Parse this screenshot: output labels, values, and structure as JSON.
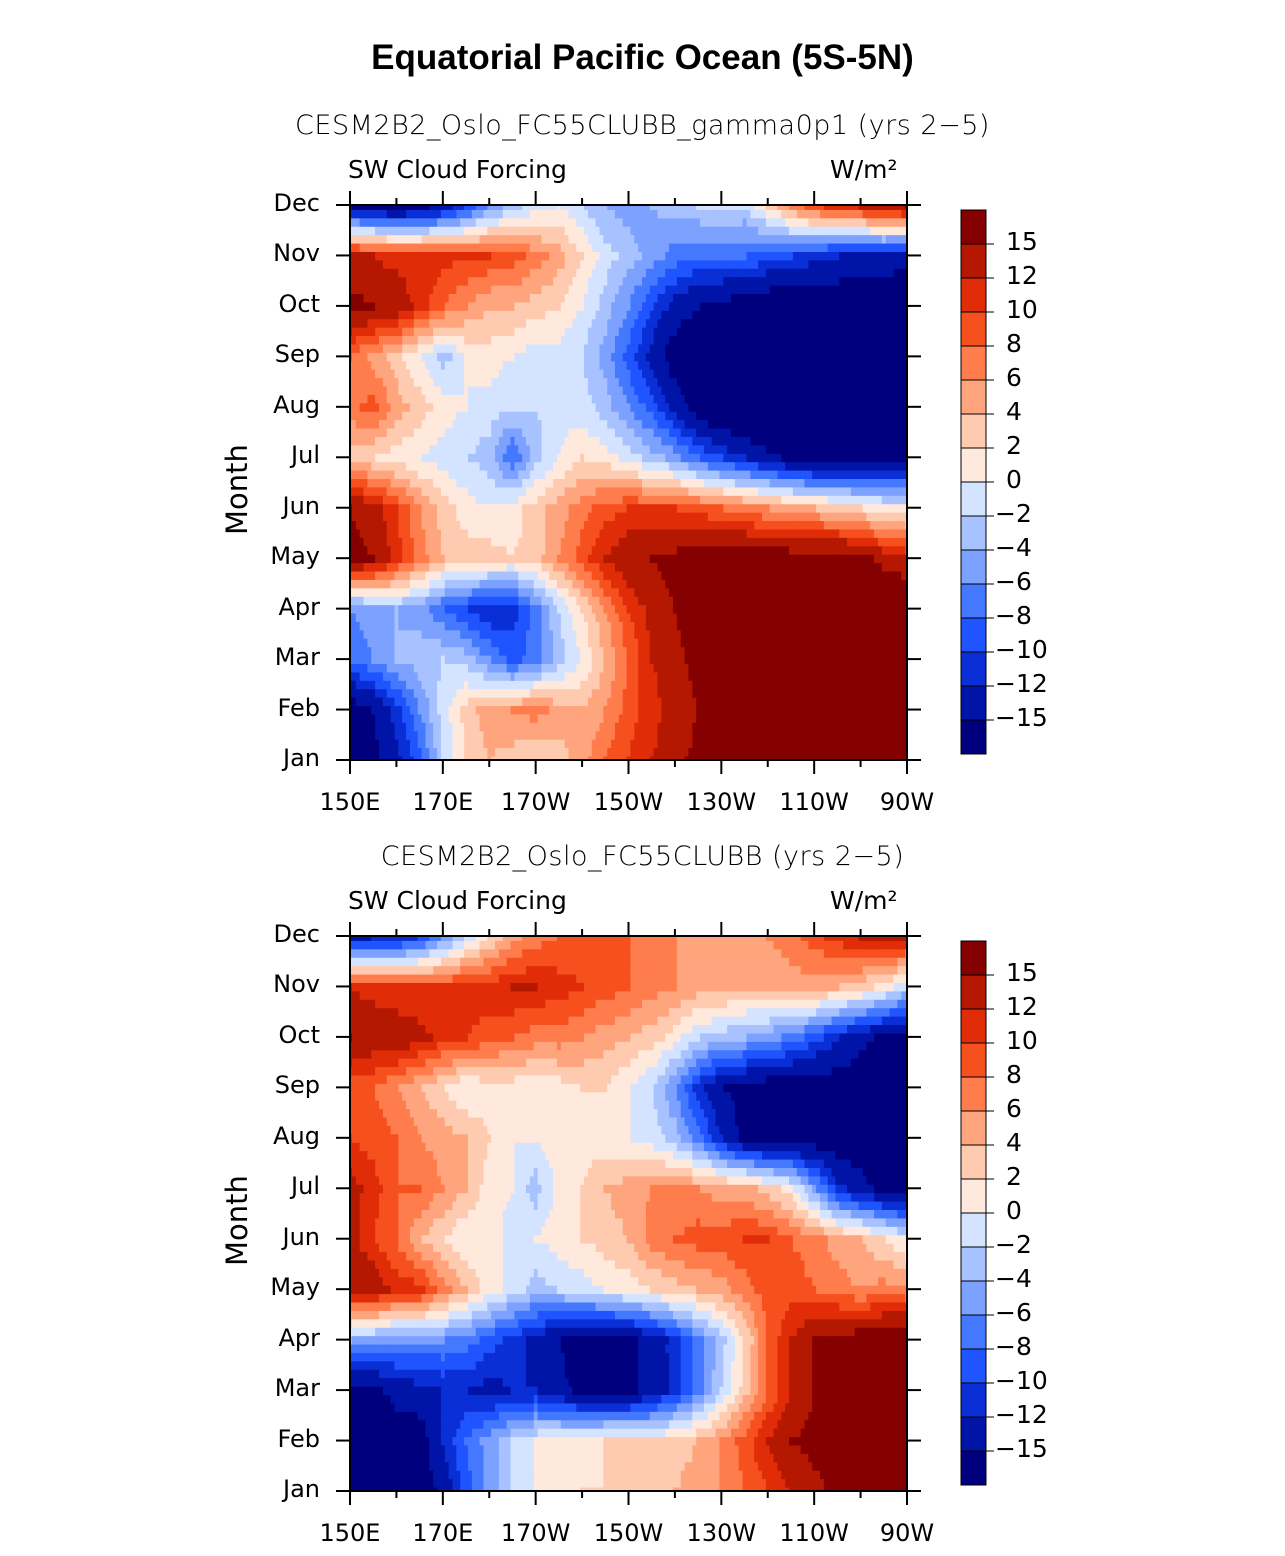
{
  "title": "Equatorial Pacific Ocean (5S-5N)",
  "colors": [
    "#00007f",
    "#0014a8",
    "#0a2fd6",
    "#1f54ff",
    "#4478ff",
    "#7ca1ff",
    "#a8c1ff",
    "#d4e3ff",
    "#ffe9dc",
    "#ffcbb0",
    "#ffa57e",
    "#ff7c4c",
    "#f5501e",
    "#e02d08",
    "#b51800",
    "#850000"
  ],
  "chart_data": [
    {
      "type": "heatmap",
      "title": "CESM2B2_Oslo_FC55CLUBB_gamma0p1 (yrs 2−5)",
      "left_string": "SW Cloud Forcing",
      "right_string": "W/m²",
      "ylabel": "Month",
      "x_ticks": [
        "150E",
        "170E",
        "170W",
        "150W",
        "130W",
        "110W",
        "90W"
      ],
      "y_ticks": [
        "Jan",
        "Feb",
        "Mar",
        "Apr",
        "May",
        "Jun",
        "Jul",
        "Aug",
        "Sep",
        "Oct",
        "Nov",
        "Dec"
      ],
      "x_lon": [
        150,
        155,
        160,
        165,
        170,
        175,
        180,
        185,
        190,
        195,
        200,
        205,
        210,
        215,
        220,
        225,
        230,
        235,
        240,
        245,
        250,
        255,
        260,
        265,
        270
      ],
      "colorbar_labels": [
        "15",
        "12",
        "10",
        "8",
        "6",
        "4",
        "2",
        "0",
        "−2",
        "−4",
        "−6",
        "−8",
        "−10",
        "−12",
        "−15"
      ],
      "values": [
        [
          -18,
          -16,
          -13,
          -9,
          -2,
          2,
          4,
          3,
          2,
          3,
          5,
          8,
          10,
          12,
          14,
          16,
          17,
          18,
          18,
          18,
          19,
          19,
          20,
          20,
          20
        ],
        [
          -17,
          -15,
          -11,
          -6,
          -1,
          3,
          5,
          6,
          7,
          5,
          4,
          6,
          9,
          11,
          13,
          15,
          16,
          17,
          18,
          18,
          19,
          19,
          20,
          20,
          20
        ],
        [
          -8,
          -6,
          -4,
          -3,
          -2,
          -3,
          -6,
          -9,
          -7,
          -3,
          0,
          4,
          8,
          12,
          14,
          16,
          17,
          18,
          18,
          19,
          19,
          20,
          20,
          20,
          20
        ],
        [
          -6,
          -5,
          -4,
          -5,
          -8,
          -10,
          -12,
          -11,
          -7,
          -2,
          2,
          6,
          10,
          13,
          15,
          17,
          18,
          19,
          19,
          19,
          19,
          20,
          20,
          20,
          20
        ],
        [
          16,
          15,
          11,
          7,
          4,
          3,
          3,
          2,
          3,
          6,
          9,
          12,
          14,
          15,
          16,
          17,
          17,
          17,
          17,
          17,
          17,
          17,
          16,
          14,
          12
        ],
        [
          15,
          13,
          10,
          6,
          3,
          1,
          0,
          1,
          3,
          5,
          7,
          9,
          10,
          10,
          10,
          9,
          8,
          7,
          6,
          5,
          4,
          3,
          2,
          1,
          0
        ],
        [
          3,
          2,
          1,
          0,
          -1,
          -2,
          -3,
          -8,
          -3,
          0,
          2,
          1,
          -1,
          -3,
          -5,
          -8,
          -10,
          -12,
          -14,
          -16,
          -17,
          -17,
          -17,
          -17,
          -16
        ],
        [
          7,
          9,
          5,
          3,
          1,
          0,
          -1,
          -2,
          -2,
          -1,
          -1,
          -3,
          -6,
          -9,
          -13,
          -17,
          -19,
          -20,
          -20,
          -20,
          -20,
          -20,
          -20,
          -20,
          -20
        ],
        [
          8,
          5,
          3,
          0,
          -3,
          0,
          1,
          0,
          -1,
          -1,
          -2,
          -5,
          -9,
          -13,
          -17,
          -19,
          -20,
          -20,
          -20,
          -20,
          -20,
          -20,
          -20,
          -20,
          -20
        ],
        [
          16,
          15,
          14,
          11,
          8,
          6,
          4,
          4,
          3,
          2,
          0,
          -3,
          -6,
          -10,
          -13,
          -15,
          -16,
          -17,
          -18,
          -18,
          -18,
          -18,
          -18,
          -18,
          -18
        ],
        [
          13,
          12,
          11,
          11,
          11,
          10,
          10,
          9,
          7,
          5,
          2,
          -1,
          -3,
          -5,
          -7,
          -8,
          -8,
          -8,
          -9,
          -10,
          -11,
          -12,
          -13,
          -13,
          -14
        ],
        [
          -15,
          -16,
          -17,
          -16,
          -14,
          -10,
          -6,
          -3,
          -1,
          0,
          -2,
          -4,
          -5,
          -4,
          -3,
          -2,
          -1,
          -2,
          2,
          6,
          9,
          11,
          12,
          14,
          15
        ]
      ]
    },
    {
      "type": "heatmap",
      "title": "CESM2B2_Oslo_FC55CLUBB (yrs 2−5)",
      "left_string": "SW Cloud Forcing",
      "right_string": "W/m²",
      "ylabel": "Month",
      "x_ticks": [
        "150E",
        "170E",
        "170W",
        "150W",
        "130W",
        "110W",
        "90W"
      ],
      "y_ticks": [
        "Jan",
        "Feb",
        "Mar",
        "Apr",
        "May",
        "Jun",
        "Jul",
        "Aug",
        "Sep",
        "Oct",
        "Nov",
        "Dec"
      ],
      "x_lon": [
        150,
        155,
        160,
        165,
        170,
        175,
        180,
        185,
        190,
        195,
        200,
        205,
        210,
        215,
        220,
        225,
        230,
        235,
        240,
        245,
        250,
        255,
        260,
        265,
        270
      ],
      "colorbar_labels": [
        "15",
        "12",
        "10",
        "8",
        "6",
        "4",
        "2",
        "0",
        "−2",
        "−4",
        "−6",
        "−8",
        "−10",
        "−12",
        "−15"
      ],
      "values": [
        [
          -17,
          -17,
          -17,
          -17,
          -14,
          -9,
          -5,
          -2,
          0,
          1,
          2,
          2,
          3,
          3,
          4,
          5,
          6,
          8,
          10,
          12,
          14,
          16,
          18,
          19,
          20
        ],
        [
          -17,
          -17,
          -17,
          -17,
          -12,
          -8,
          -5,
          -2,
          0,
          1,
          1,
          2,
          2,
          2,
          3,
          4,
          6,
          9,
          12,
          15,
          16,
          17,
          18,
          19,
          20
        ],
        [
          -17,
          -16,
          -14,
          -13,
          -12,
          -12,
          -13,
          -12,
          -12,
          -14,
          -16,
          -16,
          -16,
          -14,
          -11,
          -7,
          -2,
          3,
          8,
          12,
          15,
          16,
          18,
          18,
          19
        ],
        [
          -4,
          -5,
          -6,
          -6,
          -6,
          -7,
          -9,
          -11,
          -13,
          -15,
          -17,
          -17,
          -16,
          -14,
          -11,
          -7,
          -3,
          2,
          8,
          12,
          15,
          16,
          17,
          17,
          18
        ],
        [
          14,
          14,
          11,
          11,
          7,
          4,
          1,
          -1,
          -3,
          -2,
          -1,
          0,
          1,
          2,
          3,
          4,
          5,
          7,
          9,
          9,
          8,
          7,
          6,
          7,
          6
        ],
        [
          13,
          10,
          8,
          4,
          2,
          0,
          1,
          -1,
          0,
          1,
          2,
          3,
          4,
          7,
          8,
          9,
          9,
          10,
          10,
          8,
          7,
          5,
          4,
          2,
          0
        ],
        [
          13,
          11,
          8,
          8,
          6,
          4,
          1,
          0,
          -3,
          1,
          2,
          4,
          5,
          6,
          6,
          6,
          5,
          5,
          3,
          1,
          -5,
          -11,
          -14,
          -16,
          -17
        ],
        [
          10,
          9,
          8,
          6,
          5,
          4,
          2,
          0,
          0,
          1,
          1,
          1,
          0,
          -1,
          -3,
          -7,
          -12,
          -16,
          -17,
          -17,
          -17,
          -17,
          -17,
          -17,
          -17
        ],
        [
          9,
          8,
          6,
          4,
          2,
          0,
          1,
          1,
          0,
          1,
          2,
          2,
          0,
          -2,
          -6,
          -11,
          -15,
          -16,
          -17,
          -17,
          -17,
          -17,
          -17,
          -17,
          -17
        ],
        [
          15,
          14,
          14,
          13,
          11,
          10,
          9,
          8,
          7,
          7,
          6,
          5,
          4,
          3,
          1,
          -2,
          -3,
          -4,
          -5,
          -7,
          -9,
          -12,
          -14,
          -16,
          -17
        ],
        [
          12,
          11,
          10,
          10,
          10,
          11,
          11,
          12,
          12,
          11,
          10,
          9,
          8,
          7,
          6,
          5,
          5,
          4,
          4,
          5,
          5,
          4,
          3,
          1,
          -2
        ],
        [
          -13,
          -12,
          -12,
          -10,
          -6,
          -2,
          2,
          5,
          7,
          8,
          9,
          9,
          8,
          7,
          6,
          5,
          5,
          5,
          6,
          7,
          9,
          11,
          12,
          13,
          13
        ]
      ]
    }
  ]
}
